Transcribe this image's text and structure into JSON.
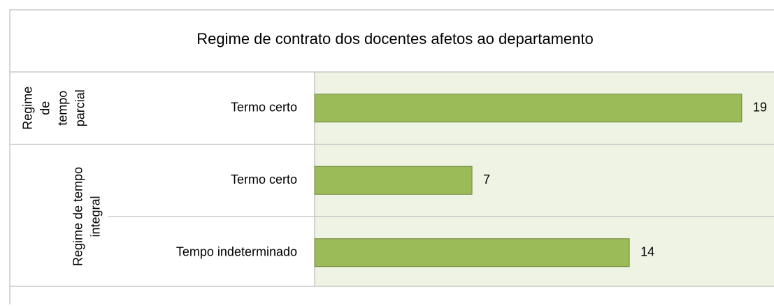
{
  "chart_data": {
    "type": "bar",
    "title": "Regime de contrato dos docentes afetos ao departamento",
    "color": "#9bbb59",
    "xlim": [
      0,
      20
    ],
    "groups": [
      {
        "name": "Regime de tempo parcial",
        "categories": [
          "Termo certo"
        ],
        "values": [
          19
        ]
      },
      {
        "name": "Regime de tempo integral",
        "categories": [
          "Termo certo",
          "Tempo indeterminado"
        ],
        "values": [
          7,
          14
        ]
      }
    ]
  }
}
